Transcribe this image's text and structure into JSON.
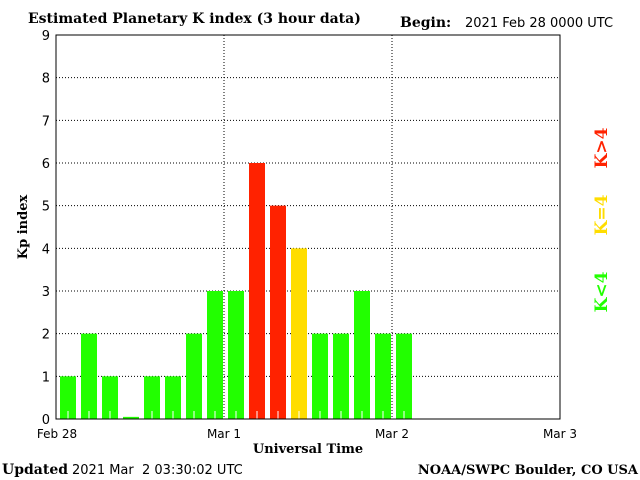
{
  "chart_data": {
    "type": "bar",
    "title": "Estimated Planetary K index (3 hour data)",
    "begin_label": "Begin:",
    "begin_value": "2021 Feb 28 0000 UTC",
    "xlabel": "Universal Time",
    "ylabel": "Kp index",
    "ylim": [
      0,
      9
    ],
    "yticks": [
      "0",
      "1",
      "2",
      "3",
      "4",
      "5",
      "6",
      "7",
      "8",
      "9"
    ],
    "xticks": [
      "Feb 28",
      "Mar 1",
      "Mar 2",
      "Mar 3"
    ],
    "slots_total": 24,
    "values": [
      1,
      2,
      1,
      0.05,
      1,
      1,
      2,
      3,
      3,
      6,
      5,
      4,
      2,
      2,
      3,
      2,
      2
    ],
    "colors": {
      "low": "#22ff00",
      "equal": "#ffdd00",
      "high": "#ff2200"
    },
    "legend": [
      "K<4",
      "K=4",
      "K>4"
    ],
    "grid": true
  },
  "footer": {
    "updated_label": "Updated",
    "updated_value": "2021 Mar  2 03:30:02 UTC",
    "source": "NOAA/SWPC Boulder, CO USA"
  }
}
